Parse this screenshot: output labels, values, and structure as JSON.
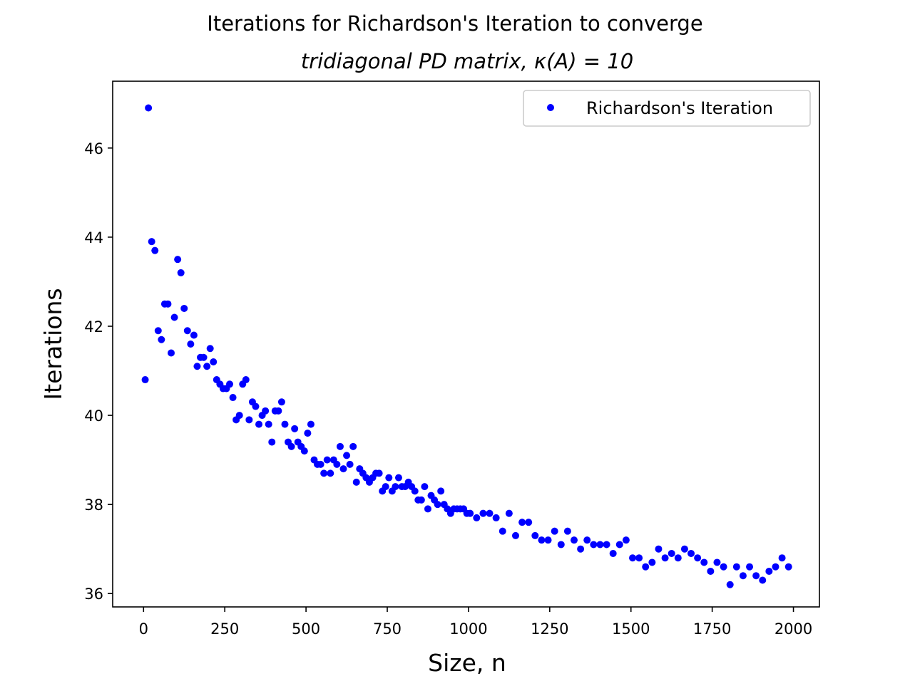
{
  "chart_data": {
    "type": "scatter",
    "title": "Iterations for Richardson's Iteration to converge",
    "subtitle": "tridiagonal PD matrix, κ(A) = 10",
    "xlabel": "Size, n",
    "ylabel": "Iterations",
    "xlim": [
      -95,
      2080
    ],
    "ylim": [
      35.7,
      47.5
    ],
    "xticks": [
      0,
      250,
      500,
      750,
      1000,
      1250,
      1500,
      1750,
      2000
    ],
    "yticks": [
      36,
      38,
      40,
      42,
      44,
      46
    ],
    "legend": {
      "position": "top-right"
    },
    "series": [
      {
        "name": "Richardson's Iteration",
        "color": "#0000ff",
        "marker": "circle",
        "x": [
          5,
          15,
          25,
          35,
          45,
          55,
          65,
          75,
          85,
          95,
          105,
          115,
          125,
          135,
          145,
          155,
          165,
          175,
          185,
          195,
          205,
          215,
          225,
          235,
          245,
          255,
          265,
          275,
          285,
          295,
          305,
          315,
          325,
          335,
          345,
          355,
          365,
          375,
          385,
          395,
          405,
          415,
          425,
          435,
          445,
          455,
          465,
          475,
          485,
          495,
          505,
          515,
          525,
          535,
          545,
          555,
          565,
          575,
          585,
          595,
          605,
          615,
          625,
          635,
          645,
          655,
          665,
          675,
          685,
          695,
          705,
          715,
          725,
          735,
          745,
          755,
          765,
          775,
          785,
          795,
          805,
          815,
          825,
          835,
          845,
          855,
          865,
          875,
          885,
          895,
          905,
          915,
          925,
          935,
          945,
          955,
          965,
          975,
          985,
          995,
          1005,
          1025,
          1045,
          1065,
          1085,
          1105,
          1125,
          1145,
          1165,
          1185,
          1205,
          1225,
          1245,
          1265,
          1285,
          1305,
          1325,
          1345,
          1365,
          1385,
          1405,
          1425,
          1445,
          1465,
          1485,
          1505,
          1525,
          1545,
          1565,
          1585,
          1605,
          1625,
          1645,
          1665,
          1685,
          1705,
          1725,
          1745,
          1765,
          1785,
          1805,
          1825,
          1845,
          1865,
          1885,
          1905,
          1925,
          1945,
          1965,
          1985
        ],
        "y": [
          40.8,
          46.9,
          43.9,
          43.7,
          41.9,
          41.7,
          42.5,
          42.5,
          41.4,
          42.2,
          43.5,
          43.2,
          42.4,
          41.9,
          41.6,
          41.8,
          41.1,
          41.3,
          41.3,
          41.1,
          41.5,
          41.2,
          40.8,
          40.7,
          40.6,
          40.6,
          40.7,
          40.4,
          39.9,
          40.0,
          40.7,
          40.8,
          39.9,
          40.3,
          40.2,
          39.8,
          40.0,
          40.1,
          39.8,
          39.4,
          40.1,
          40.1,
          40.3,
          39.8,
          39.4,
          39.3,
          39.7,
          39.4,
          39.3,
          39.2,
          39.6,
          39.8,
          39.0,
          38.9,
          38.9,
          38.7,
          39.0,
          38.7,
          39.0,
          38.9,
          39.3,
          38.8,
          39.1,
          38.9,
          39.3,
          38.5,
          38.8,
          38.7,
          38.6,
          38.5,
          38.6,
          38.7,
          38.7,
          38.3,
          38.4,
          38.6,
          38.3,
          38.4,
          38.6,
          38.4,
          38.4,
          38.5,
          38.4,
          38.3,
          38.1,
          38.1,
          38.4,
          37.9,
          38.2,
          38.1,
          38.0,
          38.3,
          38.0,
          37.9,
          37.8,
          37.9,
          37.9,
          37.9,
          37.9,
          37.8,
          37.8,
          37.7,
          37.8,
          37.8,
          37.7,
          37.4,
          37.8,
          37.3,
          37.6,
          37.6,
          37.3,
          37.2,
          37.2,
          37.4,
          37.1,
          37.4,
          37.2,
          37.0,
          37.2,
          37.1,
          37.1,
          37.1,
          36.9,
          37.1,
          37.2,
          36.8,
          36.8,
          36.6,
          36.7,
          37.0,
          36.8,
          36.9,
          36.8,
          37.0,
          36.9,
          36.8,
          36.7,
          36.5,
          36.7,
          36.6,
          36.2,
          36.6,
          36.4,
          36.6,
          36.4,
          36.3,
          36.5,
          36.6,
          36.8,
          36.6
        ]
      }
    ]
  }
}
